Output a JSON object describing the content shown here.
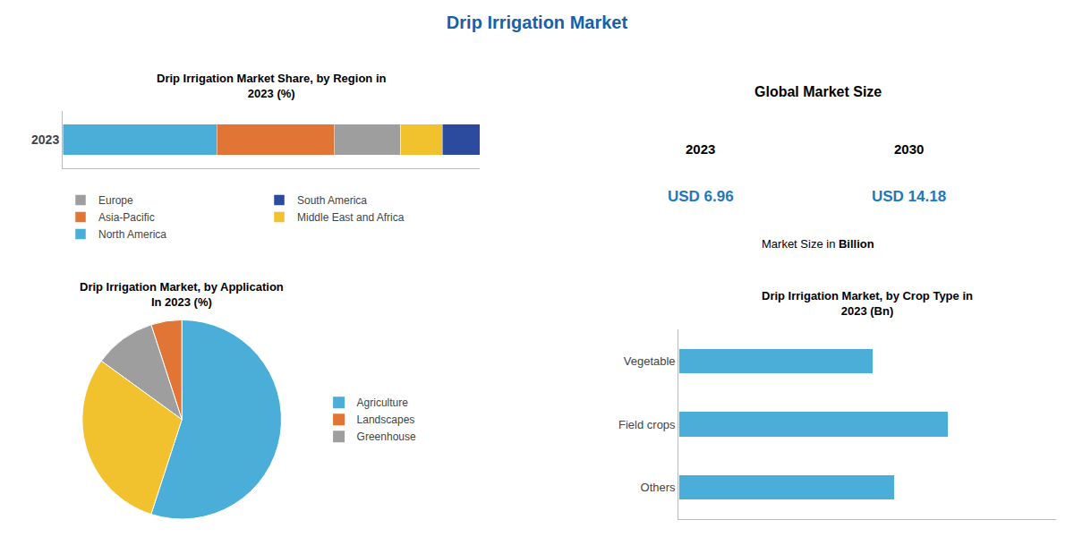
{
  "title": "Drip Irrigation Market",
  "color": "#1a5fa8",
  "chart_data": [
    {
      "type": "bar",
      "title": "Drip Irrigation Market Share, by Region in\n2023 (%)",
      "orientation": "horizontal",
      "stacked": true,
      "categories": [
        "2023"
      ],
      "series": [
        {
          "name": "North America",
          "color": "#4aaed9",
          "values": [
            37
          ]
        },
        {
          "name": "Asia-Pacific",
          "color": "#e07535",
          "values": [
            28
          ]
        },
        {
          "name": "Europe",
          "color": "#9e9e9e",
          "values": [
            16
          ]
        },
        {
          "name": "Middle East and Africa",
          "color": "#f2c12e",
          "values": [
            10
          ]
        },
        {
          "name": "South America",
          "color": "#2d4b9e",
          "values": [
            9
          ]
        }
      ],
      "xlim": [
        0,
        100
      ],
      "xticks": [],
      "tick_labels": "y",
      "grid": false,
      "legend": "bottom"
    },
    {
      "type": "text",
      "title": "Global Market Size",
      "annotations": [
        {
          "text": "2023"
        },
        {
          "text": "2030"
        },
        {
          "text": "USD 6.96",
          "color": "#1a7abf"
        },
        {
          "text": "USD 14.18",
          "color": "#1a7abf"
        },
        {
          "text": "Market Size in "
        },
        {
          "text": "Billion"
        }
      ]
    },
    {
      "type": "pie",
      "title": "Drip Irrigation Market, by Application\nIn 2023 (%)",
      "categories": [
        "Agriculture",
        "Landscapes",
        "Greenhouse",
        null
      ],
      "values": [
        55,
        5,
        10,
        30
      ],
      "colors": [
        "#4aaed9",
        "#e07535",
        "#9e9e9e",
        "#f2c12e"
      ],
      "data_labels": false,
      "legend": "right"
    },
    {
      "type": "bar",
      "title": "Drip Irrigation Market, by Crop Type in\n2023 (Bn)",
      "orientation": "horizontal",
      "categories": [
        "Others",
        "Field crops",
        "Vegetable"
      ],
      "values": [
        2.0,
        2.5,
        1.8
      ],
      "color": "#4aaed9",
      "xlim": [
        0,
        3.5
      ],
      "xticks": [],
      "tick_labels": "y",
      "grid": false
    }
  ]
}
